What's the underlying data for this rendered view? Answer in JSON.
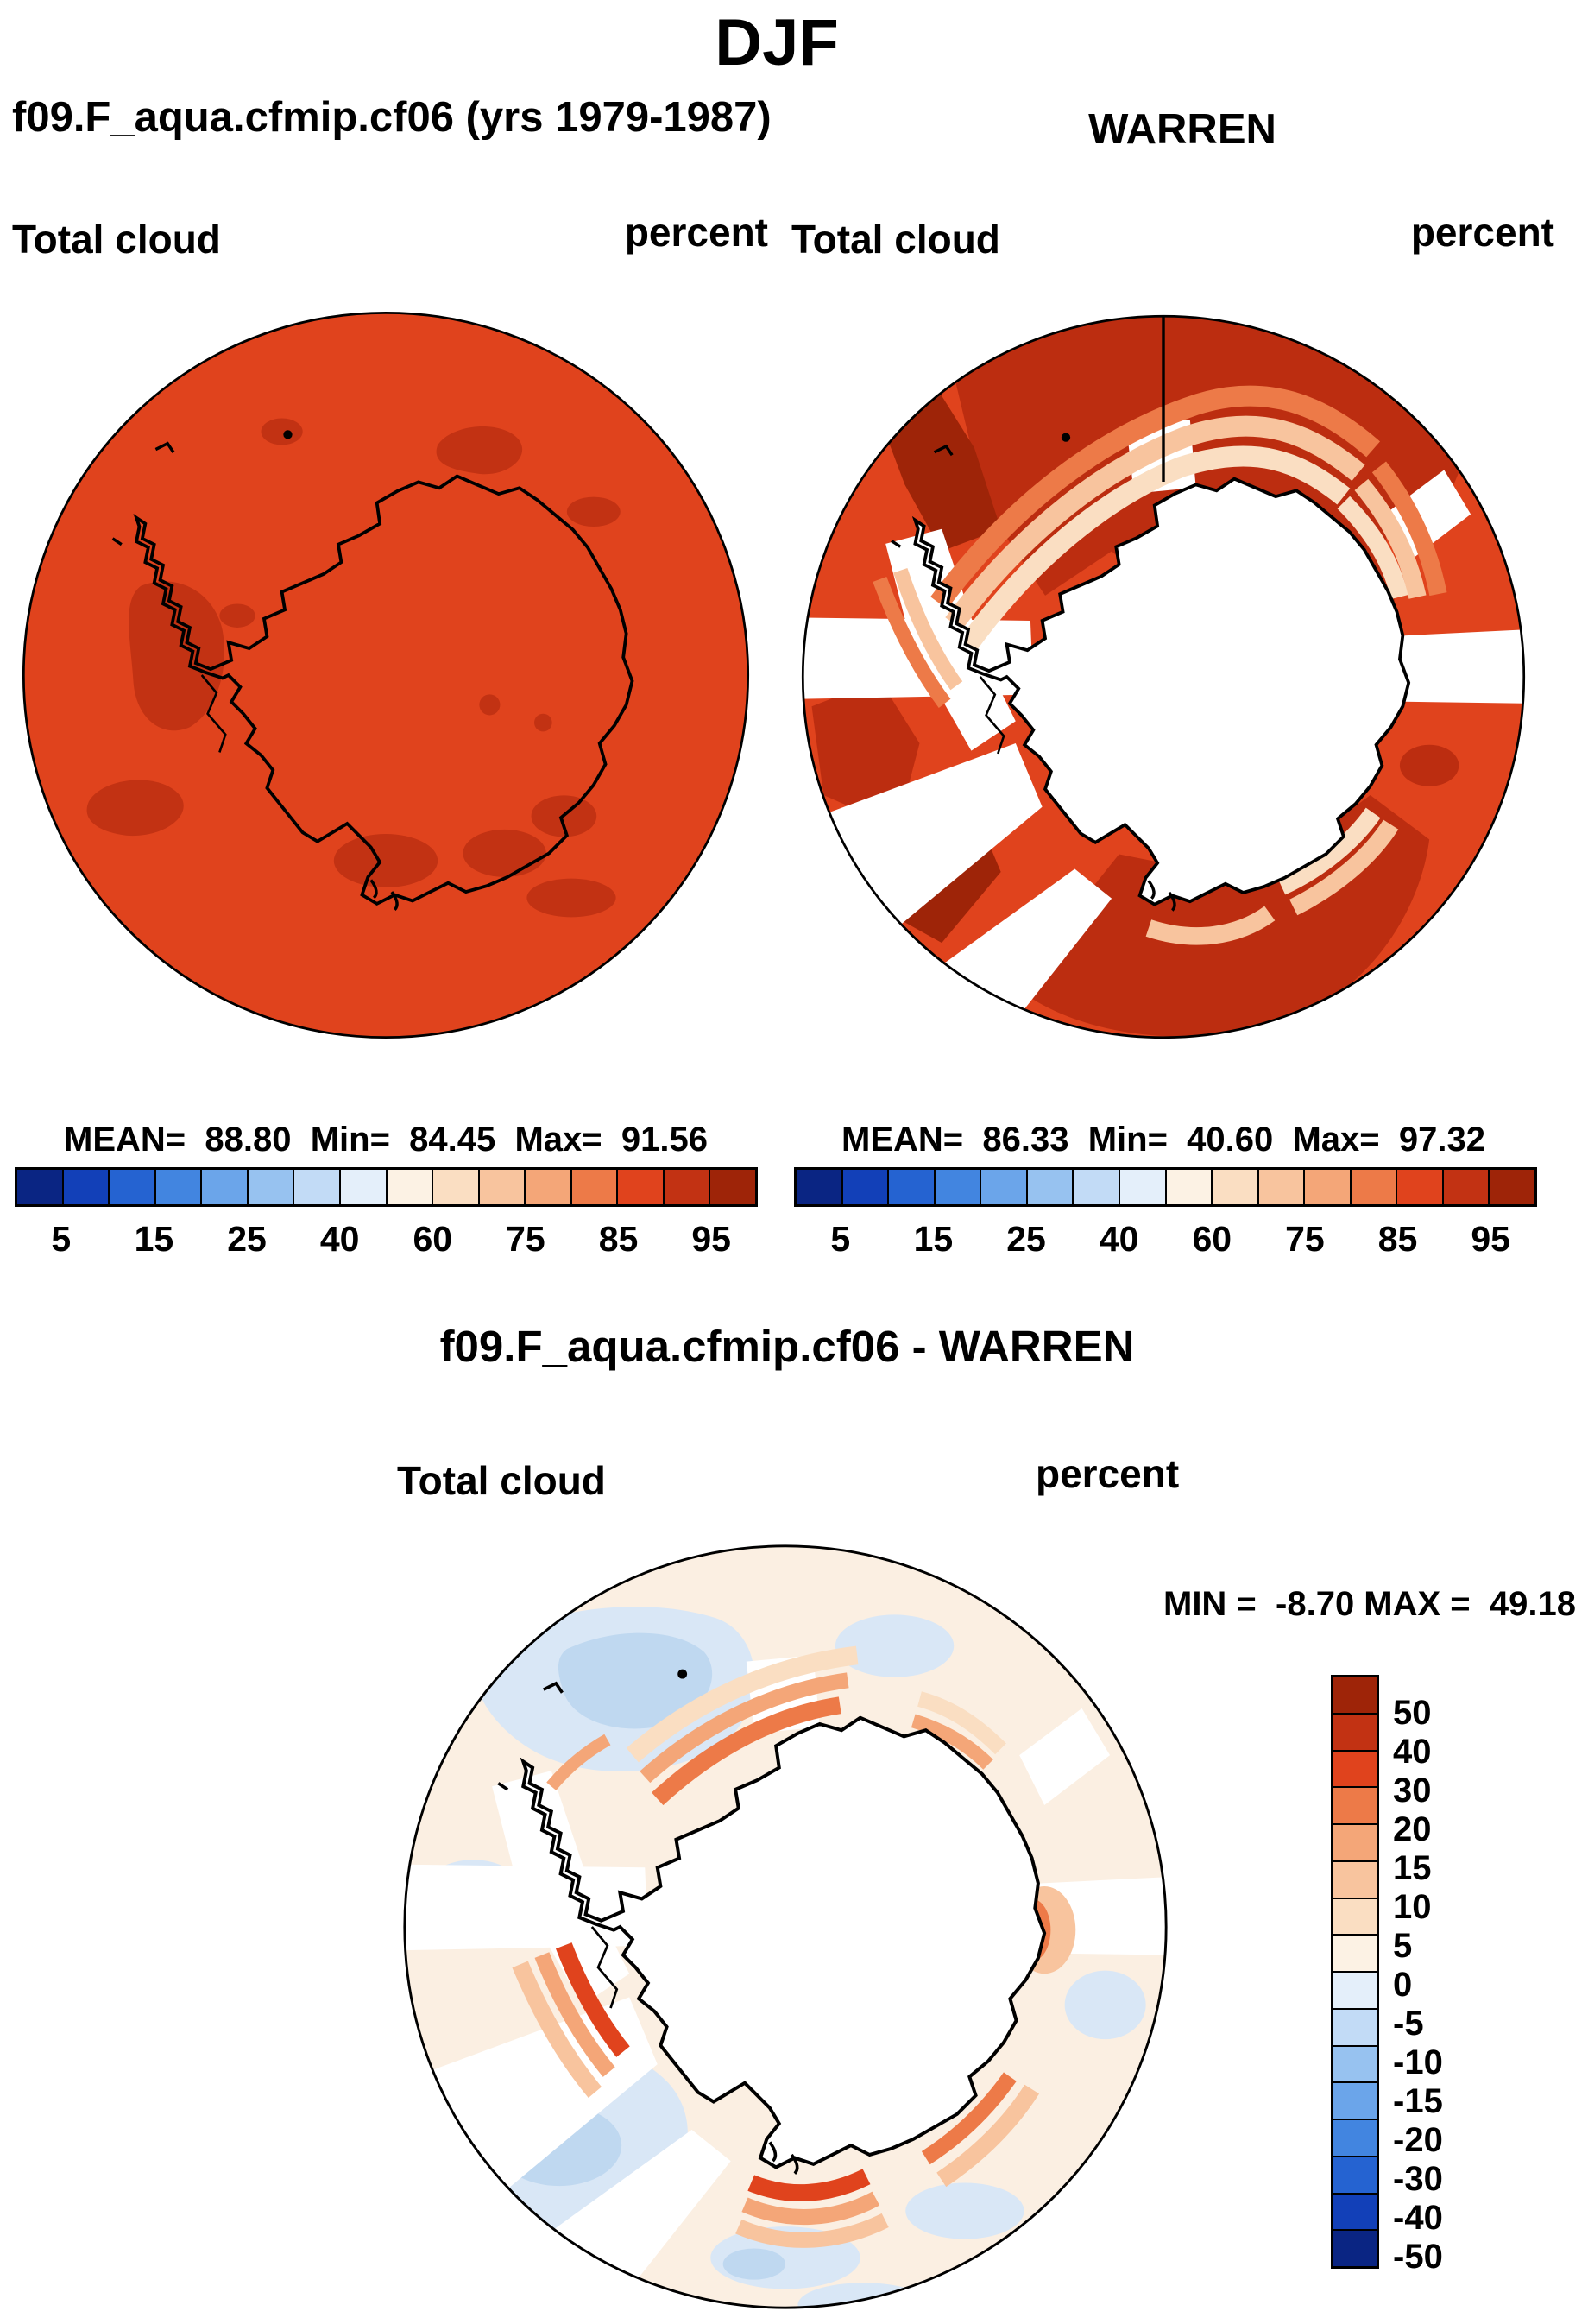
{
  "title": "DJF",
  "panels": {
    "model": {
      "title": "f09.F_aqua.cfmip.cf06 (yrs 1979-1987)",
      "field": "Total cloud",
      "units": "percent",
      "stats_text": "MEAN=  88.80  Min=  84.45  Max=  91.56"
    },
    "obs": {
      "title": "WARREN",
      "field": "Total cloud",
      "units": "percent",
      "stats_text": "MEAN=  86.33  Min=  40.60  Max=  97.32"
    },
    "diff": {
      "title": "f09.F_aqua.cfmip.cf06 - WARREN",
      "field": "Total cloud",
      "units": "percent",
      "minmax_text": "MIN =  -8.70 MAX =  49.18"
    }
  },
  "colorbar": {
    "colors": [
      "#0A2583",
      "#1240B8",
      "#2563D1",
      "#4285E0",
      "#6BA5EA",
      "#97C2F0",
      "#C2DBF6",
      "#E4EFFA",
      "#FCF2E4",
      "#FADEC2",
      "#F8C49E",
      "#F4A678",
      "#ED7A48",
      "#E0431D",
      "#C23213",
      "#9E2408"
    ],
    "tick_labels": [
      "5",
      "15",
      "25",
      "40",
      "60",
      "75",
      "85",
      "95"
    ]
  },
  "diff_colorbar": {
    "colors": [
      "#9E2408",
      "#C23213",
      "#E0431D",
      "#ED7A48",
      "#F4A678",
      "#F8C49E",
      "#FADEC2",
      "#FCF2E4",
      "#E4EFFA",
      "#C2DBF6",
      "#97C2F0",
      "#6BA5EA",
      "#4285E0",
      "#2563D1",
      "#1240B8",
      "#0A2583"
    ],
    "tick_labels": [
      "50",
      "40",
      "30",
      "20",
      "15",
      "10",
      "5",
      "0",
      "-5",
      "-10",
      "-15",
      "-20",
      "-30",
      "-40",
      "-50"
    ]
  },
  "map_colors": {
    "field_red": "#E0431D",
    "dark_patch": "#C23213",
    "deep_red": "#9E2408",
    "dark_red": "#BC2D10",
    "pale_base": "#FBEFE2",
    "light_blue": "#D9E7F6",
    "mid_blue": "#BFD8F0",
    "missing_white": "#FFFFFF"
  },
  "chart_data": [
    {
      "type": "heatmap",
      "subtype": "south-polar-stereographic-contour-map",
      "season": "DJF",
      "title": "f09.F_aqua.cfmip.cf06 (yrs 1979-1987)",
      "variable": "Total cloud",
      "units": "percent",
      "stats": {
        "mean": 88.8,
        "min": 84.45,
        "max": 91.56
      },
      "contour_levels": [
        5,
        10,
        15,
        20,
        25,
        30,
        40,
        50,
        60,
        70,
        75,
        80,
        85,
        90,
        95
      ],
      "labeled_levels": [
        5,
        15,
        25,
        40,
        60,
        75,
        85,
        95
      ],
      "palette": [
        "#0A2583",
        "#1240B8",
        "#2563D1",
        "#4285E0",
        "#6BA5EA",
        "#97C2F0",
        "#C2DBF6",
        "#E4EFFA",
        "#FCF2E4",
        "#FADEC2",
        "#F8C49E",
        "#F4A678",
        "#ED7A48",
        "#E0431D",
        "#C23213",
        "#9E2408"
      ],
      "legend_position": "bottom",
      "notes": "Nearly uniform cloud fraction 85-90% over Antarctic region with scattered 90-95% patches; coastline overlaid."
    },
    {
      "type": "heatmap",
      "subtype": "south-polar-stereographic-contour-map",
      "season": "DJF",
      "title": "WARREN",
      "variable": "Total cloud",
      "units": "percent",
      "stats": {
        "mean": 86.33,
        "min": 40.6,
        "max": 97.32
      },
      "contour_levels": [
        5,
        10,
        15,
        20,
        25,
        30,
        40,
        50,
        60,
        70,
        75,
        80,
        85,
        90,
        95
      ],
      "labeled_levels": [
        5,
        15,
        25,
        40,
        60,
        75,
        85,
        95
      ],
      "palette": [
        "#0A2583",
        "#1240B8",
        "#2563D1",
        "#4285E0",
        "#6BA5EA",
        "#97C2F0",
        "#C2DBF6",
        "#E4EFFA",
        "#FCF2E4",
        "#FADEC2",
        "#F8C49E",
        "#F4A678",
        "#ED7A48",
        "#E0431D",
        "#C23213",
        "#9E2408"
      ],
      "legend_position": "bottom",
      "notes": "Observed cloud 85-97% over ocean, >95% dark red sectors, missing (white) data over continent interior and several radial sectors; salmon gradient bands fringe the coast."
    },
    {
      "type": "heatmap",
      "subtype": "south-polar-stereographic-difference-map",
      "season": "DJF",
      "title": "f09.F_aqua.cfmip.cf06 - WARREN",
      "variable": "Total cloud",
      "units": "percent",
      "stats": {
        "min": -8.7,
        "max": 49.18
      },
      "contour_levels": [
        -50,
        -40,
        -30,
        -20,
        -15,
        -10,
        -5,
        0,
        5,
        10,
        15,
        20,
        30,
        40,
        50
      ],
      "palette_top_to_bottom": [
        "#9E2408",
        "#C23213",
        "#E0431D",
        "#ED7A48",
        "#F4A678",
        "#F8C49E",
        "#FADEC2",
        "#FCF2E4",
        "#E4EFFA",
        "#C2DBF6",
        "#97C2F0",
        "#6BA5EA",
        "#4285E0",
        "#2563D1",
        "#1240B8",
        "#0A2583"
      ],
      "legend_position": "right",
      "notes": "Mostly small differences (-5 to +5); positive 10-50 arcs along the Antarctic coast; light blue negative patches over surrounding ocean; white where observations missing."
    }
  ]
}
